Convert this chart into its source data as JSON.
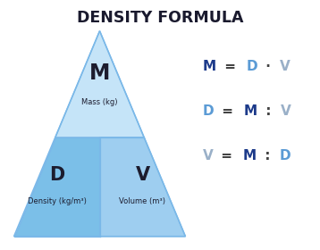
{
  "title": "DENSITY FORMULA",
  "title_fontsize": 12.5,
  "title_color": "#1a1a2e",
  "bg_color": "#ffffff",
  "upper_color": "#c5e4f8",
  "lower_left_color": "#7bbfe8",
  "lower_right_color": "#9ecef0",
  "divider_color": "#8ec8ee",
  "border_color": "#7ab8e8",
  "letter_M": "M",
  "letter_D": "D",
  "letter_V": "V",
  "label_mass": "Mass (kg)",
  "label_density": "Density (kg/m³)",
  "label_volume": "Volume (m³)",
  "label_fontsize": 6.0,
  "letter_fontsize_large": 17,
  "letter_fontsize_small": 15,
  "letter_color_dark": "#1c1c2e",
  "eq_fontsize": 11,
  "eq1": {
    "parts": [
      "M",
      " = ",
      "D",
      " · ",
      "V"
    ],
    "colors": [
      "#1c3a8a",
      "#444444",
      "#5b9bd5",
      "#444444",
      "#9ab0c8"
    ]
  },
  "eq2": {
    "parts": [
      "D",
      " = ",
      "M",
      " : ",
      "V"
    ],
    "colors": [
      "#5b9bd5",
      "#444444",
      "#1c3a8a",
      "#444444",
      "#9ab0c8"
    ]
  },
  "eq3": {
    "parts": [
      "V",
      " = ",
      "M",
      " : ",
      "D"
    ],
    "colors": [
      "#9ab0c8",
      "#444444",
      "#1c3a8a",
      "#444444",
      "#5b9bd5"
    ]
  }
}
